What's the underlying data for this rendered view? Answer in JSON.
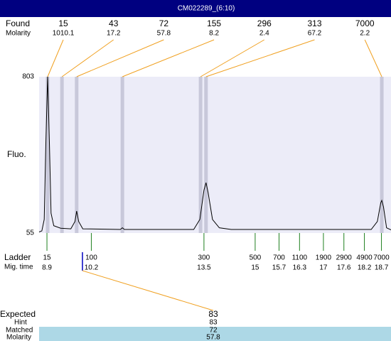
{
  "title": "CM022289_(6:10)",
  "chart_data": {
    "type": "line",
    "y_label": "Fluo.",
    "ylim": [
      55,
      803
    ],
    "yticks": [
      55,
      803
    ],
    "xlim": [
      8.67,
      18.98
    ],
    "color": "#000000",
    "x": [
      8.67,
      8.75,
      8.82,
      8.87,
      8.92,
      8.97,
      9.02,
      9.1,
      9.3,
      9.6,
      9.72,
      9.77,
      9.83,
      9.95,
      11.05,
      11.11,
      11.17,
      13.2,
      13.38,
      13.5,
      13.56,
      13.62,
      13.75,
      13.95,
      14.3,
      18.4,
      18.58,
      18.68,
      18.71,
      18.76,
      18.85,
      18.98
    ],
    "values": [
      60,
      65,
      120,
      500,
      803,
      500,
      150,
      90,
      78,
      75,
      110,
      160,
      110,
      75,
      72,
      80,
      72,
      72,
      120,
      260,
      296,
      250,
      120,
      80,
      72,
      72,
      110,
      200,
      211,
      180,
      80,
      70
    ],
    "found": {
      "label": "Found",
      "molarity_label": "Molarity",
      "x": [
        8.92,
        9.34,
        9.77,
        11.11,
        13.4,
        13.56,
        18.71
      ],
      "sizes": [
        15,
        43,
        72,
        155,
        296,
        313,
        7000
      ],
      "molarity": [
        1010.1,
        17.2,
        57.8,
        8.2,
        2.4,
        67.2,
        2.2
      ]
    },
    "ladder": {
      "label": "Ladder",
      "time_label": "Mig. time",
      "sizes": [
        15,
        100,
        300,
        500,
        700,
        1100,
        1900,
        2900,
        4900,
        7000
      ],
      "times": [
        8.9,
        10.2,
        13.5,
        15,
        15.7,
        16.3,
        17,
        17.6,
        18.2,
        18.7
      ]
    },
    "expected": {
      "label": "Expected",
      "x": 9.94,
      "value": 83,
      "hint_label": "Hint",
      "hint": 83,
      "matched_label": "Matched",
      "matched": 72,
      "molarity_label": "Molarity",
      "molarity": 57.8
    }
  }
}
